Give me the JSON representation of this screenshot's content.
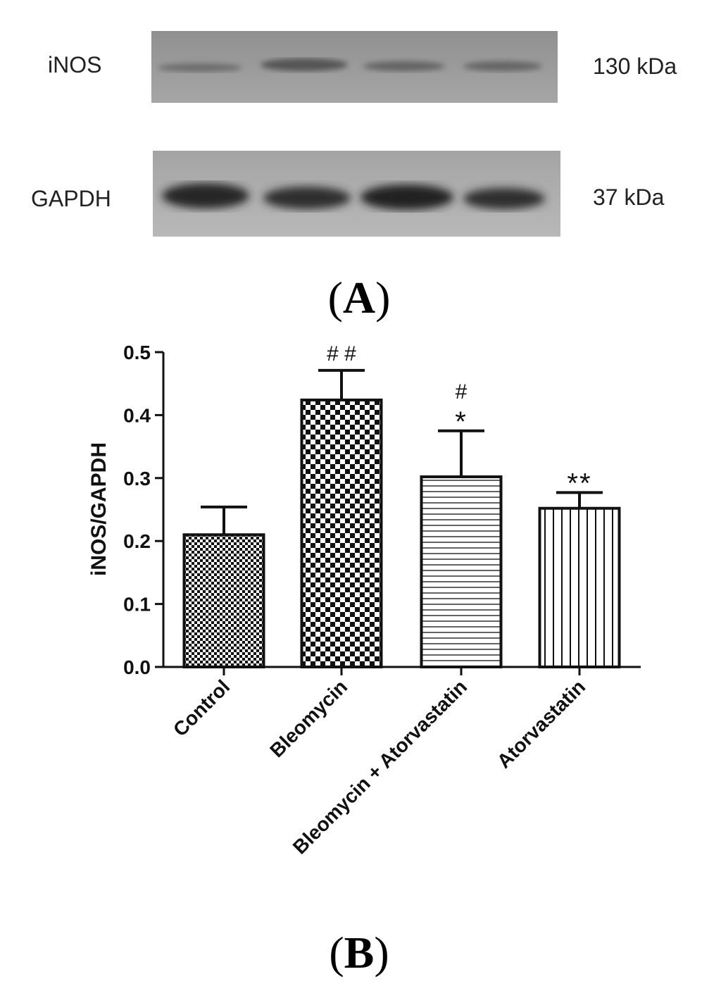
{
  "panel_a": {
    "label": "A",
    "blots": [
      {
        "protein": "iNOS",
        "weight": "130 kDa"
      },
      {
        "protein": "GAPDH",
        "weight": "37 kDa"
      }
    ]
  },
  "panel_b": {
    "label": "B"
  },
  "chart_data": {
    "type": "bar",
    "title": "",
    "xlabel": "",
    "ylabel": "iNOS/GAPDH",
    "ylim": [
      0,
      0.5
    ],
    "yticks": [
      "0.0",
      "0.1",
      "0.2",
      "0.3",
      "0.4",
      "0.5"
    ],
    "categories": [
      "Control",
      "Bleomycin",
      "Bleomycin + Atorvastatin",
      "Atorvastatin"
    ],
    "values": [
      0.21,
      0.424,
      0.302,
      0.252
    ],
    "errors": [
      0.044,
      0.047,
      0.073,
      0.025
    ],
    "annotations": [
      {
        "category": "Bleomycin",
        "lines": [
          "# #"
        ]
      },
      {
        "category": "Bleomycin + Atorvastatin",
        "lines": [
          "#",
          "*"
        ]
      },
      {
        "category": "Atorvastatin",
        "lines": [
          "**"
        ]
      }
    ],
    "patterns": [
      "fine-checker",
      "coarse-checker",
      "horizontal-lines",
      "vertical-lines"
    ]
  }
}
